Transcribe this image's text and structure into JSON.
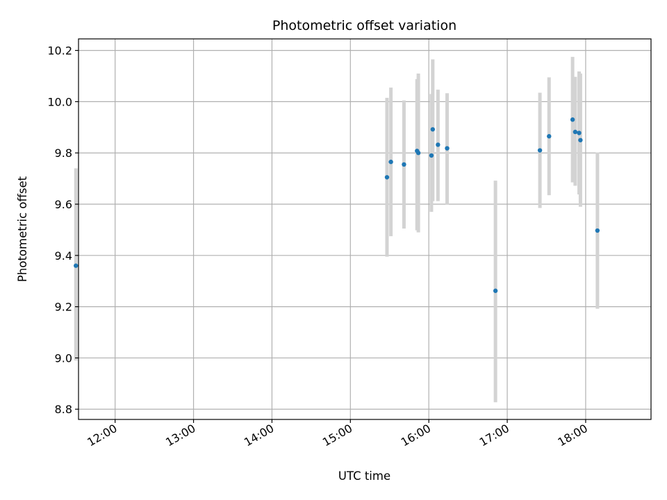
{
  "chart_data": {
    "type": "scatter",
    "title": "Photometric offset variation",
    "xlabel": "UTC time",
    "ylabel": "Photometric offset",
    "x_ticks": [
      "12:00",
      "13:00",
      "14:00",
      "15:00",
      "16:00",
      "17:00",
      "18:00"
    ],
    "y_ticks": [
      8.8,
      9.0,
      9.2,
      9.4,
      9.6,
      9.8,
      10.0,
      10.2
    ],
    "xlim": [
      "11:32",
      "18:50"
    ],
    "ylim": [
      8.76,
      10.245
    ],
    "grid": true,
    "errorbar_color": "#d3d3d3",
    "marker_color": "#1f77b4",
    "points": [
      {
        "t": "11:30",
        "y": 9.36,
        "lo": 8.99,
        "hi": 9.74
      },
      {
        "t": "15:28",
        "y": 9.705,
        "lo": 9.395,
        "hi": 10.015
      },
      {
        "t": "15:31",
        "y": 9.765,
        "lo": 9.475,
        "hi": 10.055
      },
      {
        "t": "15:41",
        "y": 9.755,
        "lo": 9.505,
        "hi": 10.005
      },
      {
        "t": "15:51",
        "y": 9.808,
        "lo": 9.498,
        "hi": 10.088
      },
      {
        "t": "15:52",
        "y": 9.8,
        "lo": 9.49,
        "hi": 10.11
      },
      {
        "t": "16:02",
        "y": 9.79,
        "lo": 9.57,
        "hi": 10.03
      },
      {
        "t": "16:03",
        "y": 9.892,
        "lo": 9.612,
        "hi": 10.165
      },
      {
        "t": "16:07",
        "y": 9.832,
        "lo": 9.612,
        "hi": 10.047
      },
      {
        "t": "16:14",
        "y": 9.818,
        "lo": 9.598,
        "hi": 10.033
      },
      {
        "t": "16:51",
        "y": 9.262,
        "lo": 8.827,
        "hi": 9.692
      },
      {
        "t": "17:25",
        "y": 9.81,
        "lo": 9.585,
        "hi": 10.035
      },
      {
        "t": "17:32",
        "y": 9.865,
        "lo": 9.635,
        "hi": 10.095
      },
      {
        "t": "17:50",
        "y": 9.93,
        "lo": 9.685,
        "hi": 10.175
      },
      {
        "t": "17:52",
        "y": 9.882,
        "lo": 9.672,
        "hi": 10.097
      },
      {
        "t": "17:55",
        "y": 9.878,
        "lo": 9.638,
        "hi": 10.118
      },
      {
        "t": "17:56",
        "y": 9.85,
        "lo": 9.59,
        "hi": 10.11
      },
      {
        "t": "18:09",
        "y": 9.497,
        "lo": 9.192,
        "hi": 9.802
      }
    ]
  }
}
